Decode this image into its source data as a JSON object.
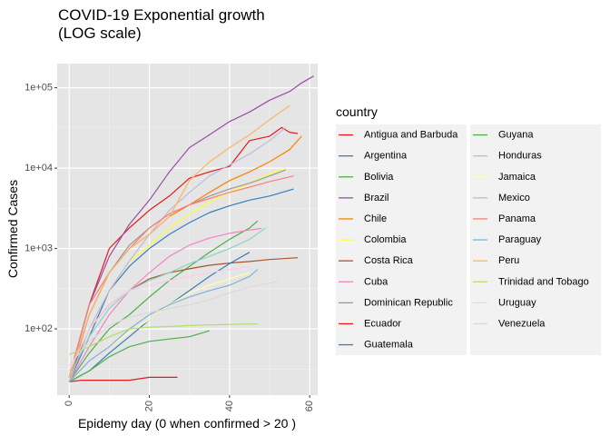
{
  "chart_data": {
    "type": "line",
    "title": [
      "COVID-19 Exponential growth",
      "(LOG scale)"
    ],
    "xlabel": "Epidemy day (0 when confirmed > 20 )",
    "ylabel": "Confirmed Cases",
    "y_scale": "log10",
    "xlim": [
      -3,
      62
    ],
    "ylim": [
      15,
      200000
    ],
    "x_ticks": [
      0,
      20,
      40,
      60
    ],
    "x_tick_labels": [
      "0",
      "20",
      "40",
      "60"
    ],
    "y_ticks": [
      100,
      1000,
      10000,
      100000
    ],
    "y_tick_labels": [
      "1e+02",
      "1e+03",
      "1e+04",
      "1e+05"
    ],
    "grid": true,
    "background": "#e5e5e5",
    "legend_title": "country",
    "legend_position": "right",
    "series": [
      {
        "name": "Antigua and Barbuda",
        "color": "#e31a1c",
        "x": [
          0,
          5,
          10,
          15,
          20,
          25,
          30,
          35,
          40,
          45,
          50,
          53,
          55,
          57
        ],
        "y": [
          25,
          200,
          1000,
          1800,
          3000,
          4500,
          7500,
          9000,
          10500,
          22000,
          25000,
          32000,
          28000,
          27000
        ]
      },
      {
        "name": "Argentina",
        "color": "#377eb8",
        "x": [
          0,
          5,
          10,
          15,
          20,
          25,
          30,
          35,
          40,
          45,
          50,
          56
        ],
        "y": [
          22,
          80,
          300,
          600,
          1000,
          1500,
          2100,
          2800,
          3400,
          4000,
          4500,
          5500
        ]
      },
      {
        "name": "Bolivia",
        "color": "#4daf4a",
        "x": [
          0,
          5,
          10,
          15,
          20,
          25,
          30,
          35,
          40,
          45,
          47
        ],
        "y": [
          22,
          50,
          100,
          150,
          250,
          400,
          600,
          900,
          1300,
          1800,
          2200
        ]
      },
      {
        "name": "Brazil",
        "color": "#984ea3",
        "x": [
          0,
          5,
          10,
          15,
          20,
          25,
          30,
          35,
          40,
          45,
          50,
          55,
          58,
          61
        ],
        "y": [
          25,
          200,
          800,
          2000,
          4000,
          9000,
          18000,
          26000,
          38000,
          50000,
          70000,
          90000,
          115000,
          140000
        ]
      },
      {
        "name": "Chile",
        "color": "#ff7f00",
        "x": [
          0,
          5,
          10,
          15,
          20,
          25,
          30,
          35,
          40,
          45,
          50,
          55,
          58
        ],
        "y": [
          25,
          150,
          500,
          1000,
          1500,
          2500,
          3500,
          5000,
          7000,
          9000,
          12000,
          17000,
          25000
        ]
      },
      {
        "name": "Colombia",
        "color": "#ffff33",
        "x": [
          0,
          5,
          10,
          15,
          20,
          25,
          30,
          35,
          40,
          45,
          50,
          54
        ],
        "y": [
          22,
          100,
          300,
          700,
          1100,
          1800,
          2700,
          3800,
          5000,
          6500,
          8500,
          10000
        ]
      },
      {
        "name": "Costa Rica",
        "color": "#a65628",
        "x": [
          0,
          5,
          10,
          15,
          20,
          25,
          30,
          35,
          40,
          45,
          50,
          57
        ],
        "y": [
          25,
          100,
          200,
          300,
          420,
          500,
          560,
          620,
          660,
          690,
          730,
          770
        ]
      },
      {
        "name": "Cuba",
        "color": "#f781bf",
        "x": [
          0,
          5,
          10,
          15,
          20,
          25,
          30,
          35,
          40,
          45,
          48
        ],
        "y": [
          22,
          60,
          150,
          300,
          500,
          800,
          1100,
          1350,
          1550,
          1700,
          1780
        ]
      },
      {
        "name": "Dominican Republic",
        "color": "#999999",
        "x": [
          0,
          5,
          10,
          15,
          20,
          25,
          30,
          35,
          40,
          45,
          50,
          54
        ],
        "y": [
          22,
          150,
          500,
          1100,
          1800,
          2700,
          3500,
          4500,
          5500,
          6500,
          8000,
          9500
        ]
      },
      {
        "name": "Ecuador",
        "color": "#e41a1c",
        "x": [
          0,
          3,
          5,
          10,
          15,
          20,
          25,
          27
        ],
        "y": [
          22,
          23,
          23,
          23,
          23,
          25,
          25,
          25
        ]
      },
      {
        "name": "Guatemala",
        "color": "#377eb8",
        "x": [
          0,
          5,
          10,
          15,
          20,
          25,
          30,
          35,
          40,
          45
        ],
        "y": [
          22,
          30,
          50,
          80,
          130,
          200,
          300,
          450,
          650,
          900
        ]
      },
      {
        "name": "Guyana",
        "color": "#4daf4a",
        "x": [
          0,
          5,
          10,
          15,
          20,
          25,
          30,
          35
        ],
        "y": [
          22,
          30,
          45,
          60,
          70,
          75,
          80,
          95
        ]
      },
      {
        "name": "Honduras",
        "color": "#8dd3c7",
        "x": [
          0,
          5,
          10,
          15,
          20,
          25,
          30,
          35,
          40,
          45,
          49
        ],
        "y": [
          25,
          80,
          180,
          300,
          400,
          500,
          650,
          800,
          1000,
          1300,
          1800
        ]
      },
      {
        "name": "Jamaica",
        "color": "#ffffb3",
        "x": [
          0,
          5,
          10,
          15,
          20,
          25,
          30,
          35,
          40,
          45
        ],
        "y": [
          22,
          40,
          60,
          90,
          130,
          200,
          280,
          350,
          420,
          500
        ]
      },
      {
        "name": "Mexico",
        "color": "#bebada",
        "x": [
          0,
          5,
          10,
          15,
          20,
          25,
          30,
          35,
          40,
          45,
          50,
          54
        ],
        "y": [
          22,
          100,
          300,
          700,
          1500,
          3000,
          5000,
          8000,
          11000,
          15000,
          22000,
          32000
        ]
      },
      {
        "name": "Panama",
        "color": "#fb8072",
        "x": [
          0,
          5,
          10,
          15,
          20,
          25,
          30,
          35,
          40,
          45,
          50,
          56
        ],
        "y": [
          25,
          200,
          500,
          1000,
          1800,
          2700,
          3500,
          4200,
          5000,
          5800,
          6800,
          8000
        ]
      },
      {
        "name": "Paraguay",
        "color": "#80b1d3",
        "x": [
          0,
          5,
          10,
          15,
          20,
          25,
          30,
          35,
          40,
          45,
          47
        ],
        "y": [
          22,
          40,
          60,
          100,
          150,
          200,
          250,
          300,
          350,
          450,
          550
        ]
      },
      {
        "name": "Peru",
        "color": "#fdb462",
        "x": [
          0,
          5,
          10,
          15,
          20,
          25,
          30,
          35,
          40,
          45,
          50,
          55
        ],
        "y": [
          25,
          150,
          500,
          1000,
          1500,
          2500,
          7000,
          12000,
          18000,
          26000,
          40000,
          60000
        ]
      },
      {
        "name": "Trinidad and Tobago",
        "color": "#b3de69",
        "x": [
          0,
          5,
          10,
          15,
          20,
          25,
          30,
          35,
          40,
          45,
          47
        ],
        "y": [
          48,
          60,
          80,
          100,
          105,
          107,
          110,
          112,
          114,
          115,
          115
        ]
      },
      {
        "name": "Uruguay",
        "color": "#fccde5",
        "x": [
          0,
          5,
          10,
          15,
          20,
          25,
          30,
          35,
          40,
          45
        ],
        "y": [
          30,
          100,
          200,
          300,
          350,
          400,
          450,
          500,
          550,
          600
        ]
      },
      {
        "name": "Venezuela",
        "color": "#d9d9d9",
        "x": [
          0,
          5,
          10,
          15,
          20,
          25,
          30,
          35,
          40,
          45,
          52
        ],
        "y": [
          35,
          70,
          110,
          140,
          160,
          180,
          200,
          230,
          280,
          330,
          390
        ]
      }
    ]
  }
}
